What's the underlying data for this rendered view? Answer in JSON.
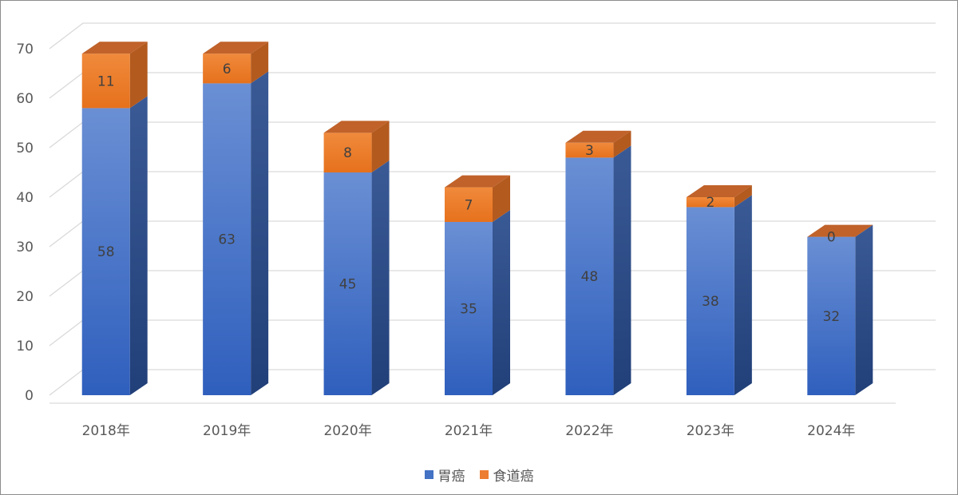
{
  "chart_data": {
    "type": "bar",
    "stacked": true,
    "three_d": true,
    "categories": [
      "2018年",
      "2019年",
      "2020年",
      "2021年",
      "2022年",
      "2023年",
      "2024年"
    ],
    "series": [
      {
        "name": "胃癌",
        "values": [
          58,
          63,
          45,
          35,
          48,
          38,
          32
        ],
        "color": "#4472c4"
      },
      {
        "name": "食道癌",
        "values": [
          11,
          6,
          8,
          7,
          3,
          2,
          0
        ],
        "color": "#ed7d31"
      }
    ],
    "ylim": [
      0,
      70
    ],
    "yticks": [
      "0",
      "10",
      "20",
      "30",
      "40",
      "50",
      "60",
      "70"
    ],
    "grid": true,
    "legend_position": "bottom"
  }
}
